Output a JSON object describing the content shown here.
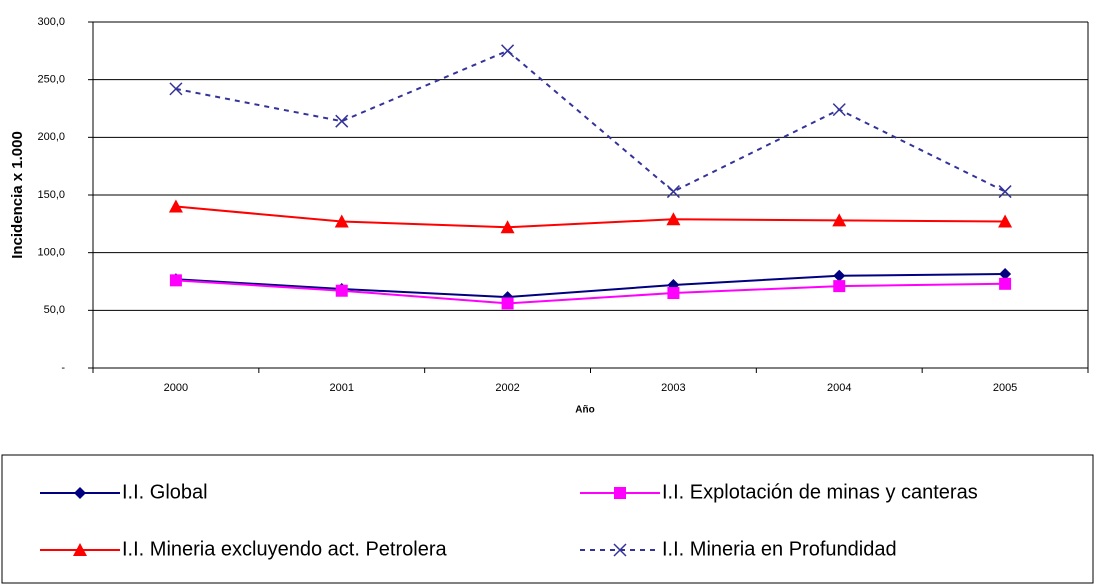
{
  "chart_data": {
    "type": "line",
    "y_label": "Incidencia x 1.000",
    "x_label": "Año",
    "categories": [
      "2000",
      "2001",
      "2002",
      "2003",
      "2004",
      "2005"
    ],
    "ylim": [
      0,
      300
    ],
    "yticks": [
      {
        "value": 0,
        "label": "-"
      },
      {
        "value": 50,
        "label": "50,0"
      },
      {
        "value": 100,
        "label": "100,0"
      },
      {
        "value": 150,
        "label": "150,0"
      },
      {
        "value": 200,
        "label": "200,0"
      },
      {
        "value": 250,
        "label": "250,0"
      },
      {
        "value": 300,
        "label": "300,0"
      }
    ],
    "grid": true,
    "legend": "bottom",
    "series": [
      {
        "name": "I.I. Global",
        "color": "#000080",
        "marker": "diamond",
        "dashed": false,
        "values": [
          77,
          68.5,
          61.5,
          72,
          80,
          81.5
        ]
      },
      {
        "name": "I.I. Explotación de minas y canteras",
        "color": "#ff00ff",
        "marker": "square",
        "dashed": false,
        "values": [
          76,
          67,
          56,
          65,
          71,
          73
        ]
      },
      {
        "name": "I.I. Mineria excluyendo act. Petrolera",
        "color": "#ff0000",
        "marker": "triangle",
        "dashed": false,
        "values": [
          140,
          127,
          122,
          129,
          128,
          127
        ]
      },
      {
        "name": "I.I. Mineria en Profundidad",
        "color": "#333399",
        "marker": "x",
        "dashed": true,
        "values": [
          242,
          214,
          275,
          153,
          224,
          153
        ]
      }
    ]
  }
}
